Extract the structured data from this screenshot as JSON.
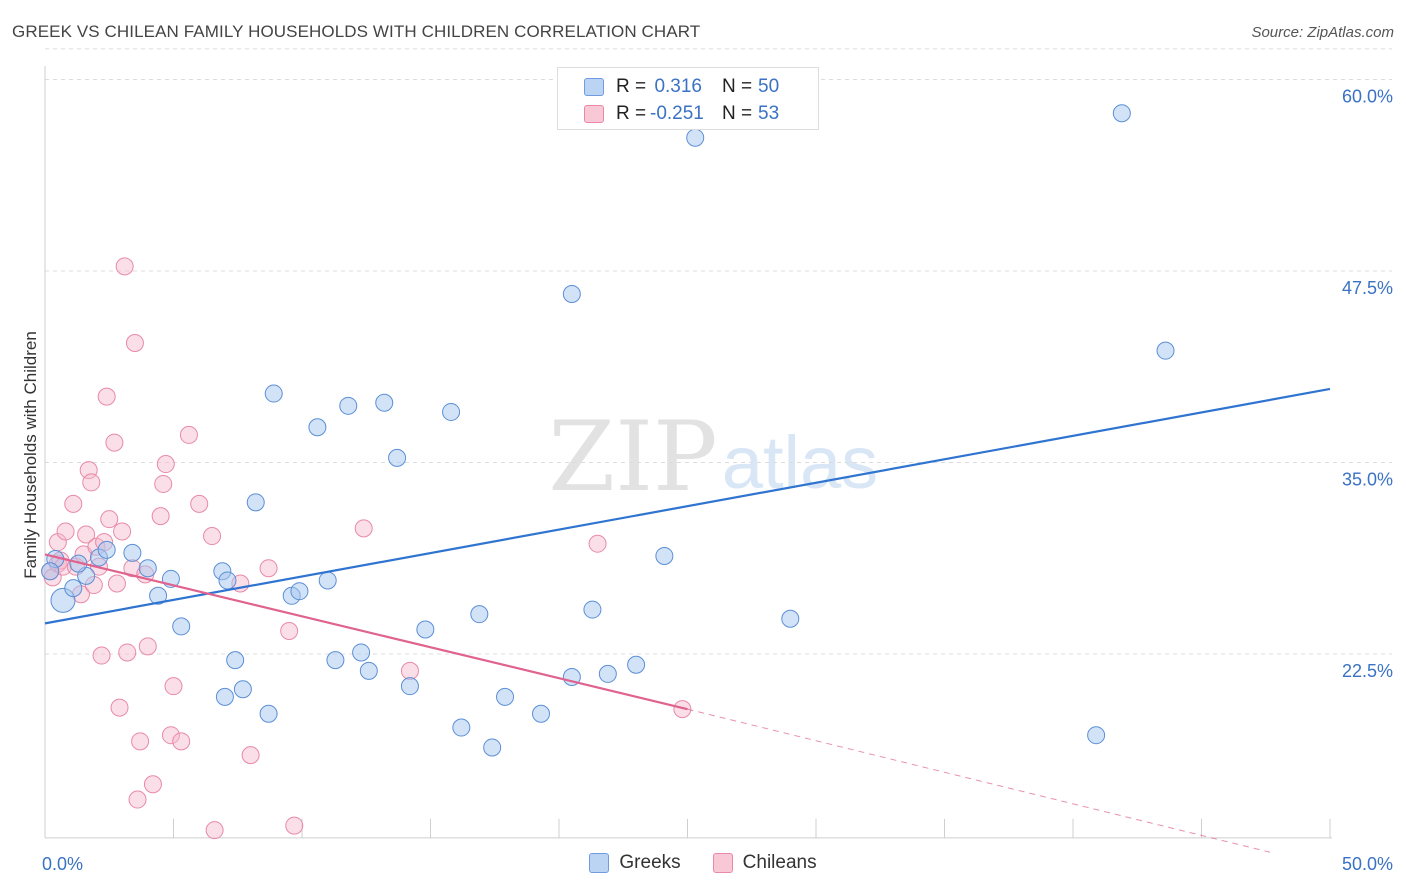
{
  "title": "GREEK VS CHILEAN FAMILY HOUSEHOLDS WITH CHILDREN CORRELATION CHART",
  "source": "Source: ZipAtlas.com",
  "watermark": {
    "zip": "ZIP",
    "atlas": "atlas"
  },
  "legend": {
    "rows": [
      {
        "r_label": "R =",
        "r_value": "0.316",
        "n_label": "N =",
        "n_value": "50"
      },
      {
        "r_label": "R =",
        "r_value": "-0.251",
        "n_label": "N =",
        "n_value": "53"
      }
    ]
  },
  "colors": {
    "greeks_fill": "#a8c8f0",
    "greeks_stroke": "#5b8fd6",
    "greeks_line": "#2f74d0",
    "chileans_fill": "#f6b8cb",
    "chileans_stroke": "#e88aa7",
    "chileans_line": "#e0628f",
    "tick_label": "#3a72c4"
  },
  "chart_data": {
    "type": "scatter",
    "xlabel": "",
    "ylabel": "Family Households with Children",
    "xlim": [
      0,
      50
    ],
    "ylim": [
      10.5,
      62
    ],
    "x_tick_labels": [
      "0.0%",
      "50.0%"
    ],
    "y_ticks": [
      22.5,
      35.0,
      47.5,
      60.0
    ],
    "y_tick_labels": [
      "22.5%",
      "35.0%",
      "47.5%",
      "60.0%"
    ],
    "grid": true,
    "series": [
      {
        "name": "Greeks",
        "r": 0.316,
        "n": 50,
        "trend": {
          "x0": 0,
          "y0": 24.5,
          "x1": 50,
          "y1": 39.8
        },
        "points": [
          [
            0.4,
            28.7
          ],
          [
            0.7,
            26.0
          ],
          [
            1.1,
            26.8
          ],
          [
            1.6,
            27.6
          ],
          [
            2.1,
            28.8
          ],
          [
            2.4,
            29.3
          ],
          [
            3.4,
            29.1
          ],
          [
            4.0,
            28.1
          ],
          [
            4.4,
            26.3
          ],
          [
            4.9,
            27.4
          ],
          [
            5.3,
            24.3
          ],
          [
            6.9,
            27.9
          ],
          [
            7.1,
            27.3
          ],
          [
            7.0,
            19.7
          ],
          [
            7.4,
            22.1
          ],
          [
            7.7,
            20.2
          ],
          [
            8.2,
            32.4
          ],
          [
            8.7,
            18.6
          ],
          [
            8.9,
            39.5
          ],
          [
            9.6,
            26.3
          ],
          [
            9.9,
            26.6
          ],
          [
            10.6,
            37.3
          ],
          [
            11.0,
            27.3
          ],
          [
            11.3,
            22.1
          ],
          [
            11.8,
            38.7
          ],
          [
            12.3,
            22.6
          ],
          [
            12.6,
            21.4
          ],
          [
            13.2,
            38.9
          ],
          [
            13.7,
            35.3
          ],
          [
            14.2,
            20.4
          ],
          [
            14.8,
            24.1
          ],
          [
            15.8,
            38.3
          ],
          [
            16.2,
            17.7
          ],
          [
            16.9,
            25.1
          ],
          [
            17.4,
            16.4
          ],
          [
            17.9,
            19.7
          ],
          [
            19.3,
            18.6
          ],
          [
            20.5,
            21.0
          ],
          [
            20.5,
            46.0
          ],
          [
            21.3,
            25.4
          ],
          [
            21.9,
            21.2
          ],
          [
            23.0,
            21.8
          ],
          [
            24.1,
            28.9
          ],
          [
            25.3,
            56.2
          ],
          [
            29.0,
            24.8
          ],
          [
            40.9,
            17.2
          ],
          [
            41.9,
            57.8
          ],
          [
            43.6,
            42.3
          ],
          [
            0.2,
            27.9
          ],
          [
            1.3,
            28.4
          ]
        ]
      },
      {
        "name": "Chileans",
        "r": -0.251,
        "n": 53,
        "trend": {
          "x0": 0,
          "y0": 29.0,
          "x1": 25.0,
          "y1": 18.9
        },
        "trend_dashed": {
          "x0": 25.0,
          "y0": 18.9,
          "x1": 50,
          "y1": 8.6
        },
        "points": [
          [
            0.2,
            27.9
          ],
          [
            0.3,
            27.5
          ],
          [
            0.5,
            28.4
          ],
          [
            0.5,
            29.8
          ],
          [
            0.6,
            28.6
          ],
          [
            0.7,
            28.2
          ],
          [
            0.8,
            30.5
          ],
          [
            1.1,
            32.3
          ],
          [
            1.2,
            28.2
          ],
          [
            1.4,
            26.4
          ],
          [
            1.5,
            29.0
          ],
          [
            1.6,
            30.3
          ],
          [
            1.7,
            34.5
          ],
          [
            1.8,
            33.7
          ],
          [
            1.9,
            27.0
          ],
          [
            2.0,
            29.5
          ],
          [
            2.1,
            28.2
          ],
          [
            2.2,
            22.4
          ],
          [
            2.3,
            29.8
          ],
          [
            2.4,
            39.3
          ],
          [
            2.5,
            31.3
          ],
          [
            2.7,
            36.3
          ],
          [
            2.8,
            27.1
          ],
          [
            2.9,
            19.0
          ],
          [
            3.0,
            30.5
          ],
          [
            3.1,
            47.8
          ],
          [
            3.2,
            22.6
          ],
          [
            3.4,
            28.1
          ],
          [
            3.5,
            42.8
          ],
          [
            3.6,
            13.0
          ],
          [
            3.7,
            16.8
          ],
          [
            3.9,
            27.7
          ],
          [
            4.0,
            23.0
          ],
          [
            4.2,
            14.0
          ],
          [
            4.5,
            31.5
          ],
          [
            4.6,
            33.6
          ],
          [
            4.7,
            34.9
          ],
          [
            4.9,
            17.2
          ],
          [
            5.0,
            20.4
          ],
          [
            5.3,
            16.8
          ],
          [
            5.6,
            36.8
          ],
          [
            6.0,
            32.3
          ],
          [
            6.5,
            30.2
          ],
          [
            6.6,
            11.0
          ],
          [
            7.6,
            27.1
          ],
          [
            8.0,
            15.9
          ],
          [
            8.7,
            28.1
          ],
          [
            9.5,
            24.0
          ],
          [
            9.7,
            11.3
          ],
          [
            12.4,
            30.7
          ],
          [
            14.2,
            21.4
          ],
          [
            21.5,
            29.7
          ],
          [
            24.8,
            18.9
          ]
        ]
      }
    ]
  },
  "bottom_legend": [
    "Greeks",
    "Chileans"
  ]
}
